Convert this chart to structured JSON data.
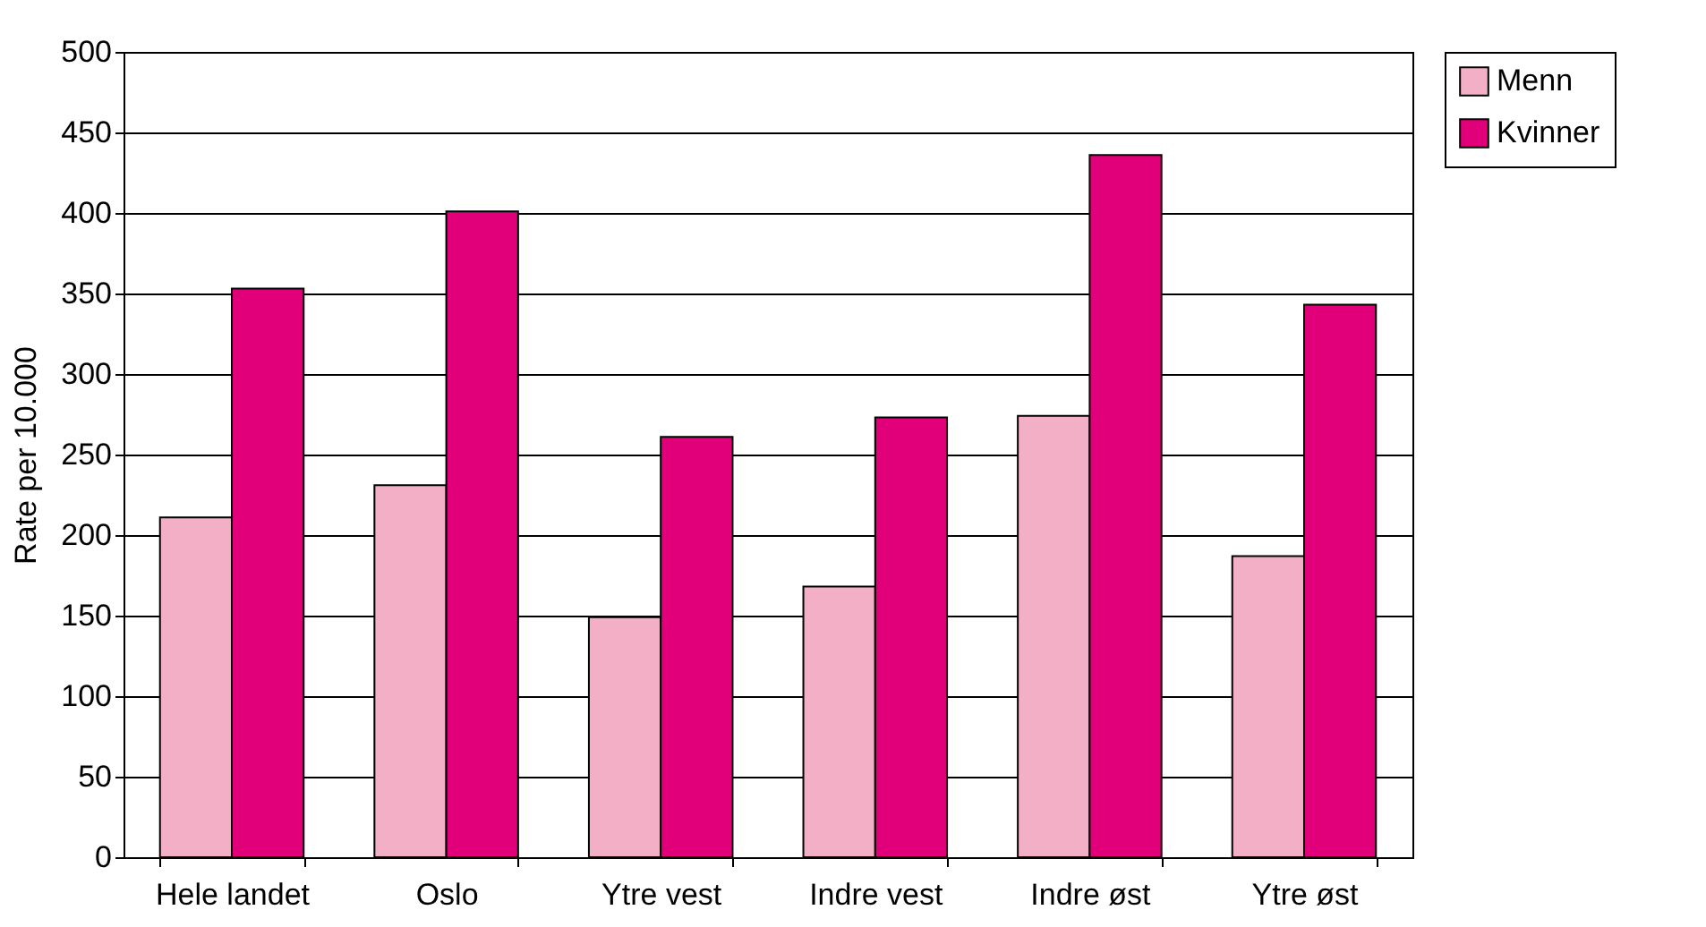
{
  "chart_data": {
    "type": "bar",
    "ylabel": "Rate per 10.000",
    "categories": [
      "Hele landet",
      "Oslo",
      "Ytre vest",
      "Indre vest",
      "Indre øst",
      "Ytre øst"
    ],
    "series": [
      {
        "name": "Menn",
        "color": "#f2afc6",
        "values": [
          211,
          231,
          149,
          168,
          274,
          187
        ]
      },
      {
        "name": "Kvinner",
        "color": "#e2007a",
        "values": [
          353,
          401,
          261,
          273,
          436,
          343
        ]
      }
    ],
    "ylim": [
      0,
      500
    ],
    "yticks": [
      0,
      50,
      100,
      150,
      200,
      250,
      300,
      350,
      400,
      450,
      500
    ],
    "grid": "y",
    "legend": "right"
  }
}
